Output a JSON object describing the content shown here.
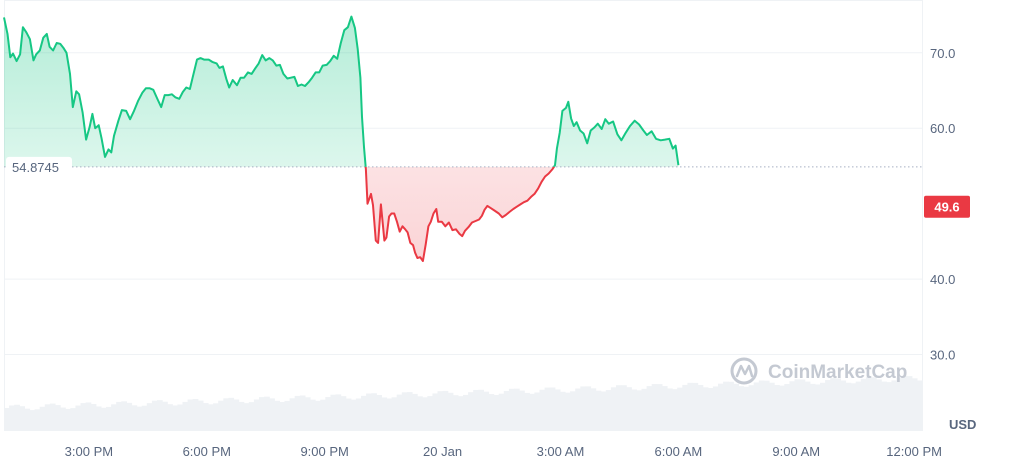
{
  "chart_data": {
    "type": "area",
    "y_unit": "USD",
    "ylim": [
      20,
      77
    ],
    "y_ticks": [
      {
        "value": 70,
        "label": "70.0"
      },
      {
        "value": 60,
        "label": "60.0"
      },
      {
        "value": 40,
        "label": "40.0"
      },
      {
        "value": 30,
        "label": "30.0"
      }
    ],
    "x_ticks": [
      {
        "t": 1.0,
        "label": "3:00 PM"
      },
      {
        "t": 4.0,
        "label": "6:00 PM"
      },
      {
        "t": 7.0,
        "label": "9:00 PM"
      },
      {
        "t": 10.0,
        "label": "20 Jan"
      },
      {
        "t": 13.0,
        "label": "3:00 AM"
      },
      {
        "t": 16.0,
        "label": "6:00 AM"
      },
      {
        "t": 19.0,
        "label": "9:00 AM"
      },
      {
        "t": 22.0,
        "label": "12:00 PM"
      }
    ],
    "x_range_hours": [
      -1.16,
      22.2
    ],
    "reference_line": {
      "value": 54.8745,
      "label": "54.8745"
    },
    "current_price": {
      "value": 49.6,
      "label": "49.6"
    },
    "colors": {
      "up": "#16c784",
      "down": "#ea3943",
      "grid": "#eff2f5",
      "volume": "#eff2f5"
    },
    "grid": true,
    "watermark": "CoinMarketCap",
    "series": [
      {
        "points": [
          [
            -1.16,
            74.7
          ],
          [
            -1.07,
            72.5
          ],
          [
            -1.0,
            69.4
          ],
          [
            -0.93,
            69.9
          ],
          [
            -0.84,
            68.9
          ],
          [
            -0.75,
            69.8
          ],
          [
            -0.68,
            73.4
          ],
          [
            -0.59,
            72.7
          ],
          [
            -0.5,
            71.8
          ],
          [
            -0.41,
            69.0
          ],
          [
            -0.34,
            69.8
          ],
          [
            -0.25,
            70.3
          ],
          [
            -0.16,
            72.0
          ],
          [
            -0.07,
            72.5
          ],
          [
            0.0,
            70.8
          ],
          [
            0.09,
            70.3
          ],
          [
            0.18,
            71.3
          ],
          [
            0.27,
            71.2
          ],
          [
            0.36,
            70.6
          ],
          [
            0.43,
            70.0
          ],
          [
            0.52,
            67.2
          ],
          [
            0.59,
            62.8
          ],
          [
            0.68,
            64.9
          ],
          [
            0.75,
            64.5
          ],
          [
            0.84,
            62.1
          ],
          [
            0.93,
            58.5
          ],
          [
            1.02,
            60.2
          ],
          [
            1.09,
            61.9
          ],
          [
            1.16,
            60.0
          ],
          [
            1.25,
            60.4
          ],
          [
            1.32,
            58.7
          ],
          [
            1.41,
            56.2
          ],
          [
            1.5,
            57.2
          ],
          [
            1.57,
            56.8
          ],
          [
            1.64,
            59.0
          ],
          [
            1.75,
            61.0
          ],
          [
            1.84,
            62.4
          ],
          [
            1.95,
            62.3
          ],
          [
            2.05,
            61.2
          ],
          [
            2.14,
            62.2
          ],
          [
            2.25,
            63.6
          ],
          [
            2.36,
            64.7
          ],
          [
            2.45,
            65.3
          ],
          [
            2.55,
            65.3
          ],
          [
            2.64,
            65.1
          ],
          [
            2.75,
            63.8
          ],
          [
            2.84,
            62.8
          ],
          [
            2.93,
            64.4
          ],
          [
            3.02,
            64.4
          ],
          [
            3.11,
            64.5
          ],
          [
            3.2,
            64.1
          ],
          [
            3.3,
            63.9
          ],
          [
            3.39,
            64.8
          ],
          [
            3.48,
            65.4
          ],
          [
            3.57,
            65.2
          ],
          [
            3.64,
            66.7
          ],
          [
            3.75,
            69.1
          ],
          [
            3.84,
            69.3
          ],
          [
            3.93,
            69.1
          ],
          [
            4.05,
            69.1
          ],
          [
            4.14,
            68.8
          ],
          [
            4.25,
            68.6
          ],
          [
            4.32,
            68.0
          ],
          [
            4.41,
            68.2
          ],
          [
            4.5,
            66.5
          ],
          [
            4.57,
            65.4
          ],
          [
            4.66,
            66.4
          ],
          [
            4.77,
            65.7
          ],
          [
            4.86,
            66.7
          ],
          [
            4.95,
            66.7
          ],
          [
            5.05,
            67.4
          ],
          [
            5.14,
            67.2
          ],
          [
            5.23,
            67.9
          ],
          [
            5.32,
            68.6
          ],
          [
            5.41,
            69.7
          ],
          [
            5.5,
            69.0
          ],
          [
            5.59,
            69.3
          ],
          [
            5.68,
            69.0
          ],
          [
            5.77,
            68.3
          ],
          [
            5.86,
            68.4
          ],
          [
            5.95,
            67.2
          ],
          [
            6.05,
            66.6
          ],
          [
            6.14,
            66.7
          ],
          [
            6.23,
            66.8
          ],
          [
            6.32,
            65.6
          ],
          [
            6.41,
            65.8
          ],
          [
            6.5,
            65.6
          ],
          [
            6.59,
            66.1
          ],
          [
            6.68,
            66.7
          ],
          [
            6.77,
            67.4
          ],
          [
            6.86,
            67.4
          ],
          [
            6.95,
            68.3
          ],
          [
            7.05,
            68.4
          ],
          [
            7.14,
            68.9
          ],
          [
            7.23,
            69.6
          ],
          [
            7.32,
            69.2
          ],
          [
            7.41,
            71.3
          ],
          [
            7.5,
            73.0
          ],
          [
            7.59,
            73.4
          ],
          [
            7.68,
            74.8
          ],
          [
            7.77,
            73.3
          ],
          [
            7.84,
            70.5
          ],
          [
            7.91,
            66.7
          ],
          [
            7.95,
            61.5
          ],
          [
            8.0,
            57.5
          ],
          [
            8.05,
            54.5
          ],
          [
            8.09,
            50.0
          ],
          [
            8.18,
            51.3
          ],
          [
            8.23,
            49.8
          ],
          [
            8.3,
            45.1
          ],
          [
            8.36,
            44.8
          ],
          [
            8.43,
            49.9
          ],
          [
            8.52,
            45.1
          ],
          [
            8.57,
            45.5
          ],
          [
            8.64,
            48.3
          ],
          [
            8.7,
            48.7
          ],
          [
            8.77,
            48.7
          ],
          [
            8.84,
            47.6
          ],
          [
            8.91,
            46.3
          ],
          [
            8.98,
            47.0
          ],
          [
            9.05,
            46.6
          ],
          [
            9.11,
            46.2
          ],
          [
            9.18,
            44.8
          ],
          [
            9.25,
            44.5
          ],
          [
            9.3,
            43.5
          ],
          [
            9.36,
            42.8
          ],
          [
            9.43,
            42.9
          ],
          [
            9.5,
            42.4
          ],
          [
            9.57,
            44.6
          ],
          [
            9.64,
            47.0
          ],
          [
            9.7,
            47.6
          ],
          [
            9.77,
            48.7
          ],
          [
            9.84,
            49.3
          ],
          [
            9.89,
            47.6
          ],
          [
            9.98,
            47.6
          ],
          [
            10.07,
            47.0
          ],
          [
            10.16,
            47.5
          ],
          [
            10.25,
            46.5
          ],
          [
            10.34,
            46.6
          ],
          [
            10.43,
            46.0
          ],
          [
            10.5,
            45.7
          ],
          [
            10.57,
            46.4
          ],
          [
            10.66,
            46.9
          ],
          [
            10.75,
            47.5
          ],
          [
            10.84,
            47.7
          ],
          [
            10.93,
            47.9
          ],
          [
            11.0,
            48.4
          ],
          [
            11.07,
            49.2
          ],
          [
            11.14,
            49.7
          ],
          [
            11.23,
            49.4
          ],
          [
            11.32,
            49.1
          ],
          [
            11.43,
            48.7
          ],
          [
            11.52,
            48.2
          ],
          [
            11.61,
            48.5
          ],
          [
            11.7,
            48.9
          ],
          [
            11.8,
            49.3
          ],
          [
            11.89,
            49.6
          ],
          [
            11.98,
            49.9
          ],
          [
            12.07,
            50.2
          ],
          [
            12.16,
            50.4
          ],
          [
            12.25,
            50.9
          ],
          [
            12.34,
            51.3
          ],
          [
            12.43,
            52.0
          ],
          [
            12.52,
            52.9
          ],
          [
            12.61,
            53.6
          ],
          [
            12.7,
            54.0
          ],
          [
            12.8,
            54.6
          ],
          [
            12.86,
            55.1
          ],
          [
            12.91,
            57.3
          ],
          [
            12.98,
            59.4
          ],
          [
            13.05,
            62.3
          ],
          [
            13.14,
            62.7
          ],
          [
            13.2,
            63.5
          ],
          [
            13.27,
            61.3
          ],
          [
            13.34,
            60.3
          ],
          [
            13.41,
            60.8
          ],
          [
            13.5,
            59.7
          ],
          [
            13.59,
            59.3
          ],
          [
            13.68,
            58.0
          ],
          [
            13.77,
            59.7
          ],
          [
            13.86,
            60.1
          ],
          [
            13.95,
            60.6
          ],
          [
            14.05,
            59.9
          ],
          [
            14.14,
            61.2
          ],
          [
            14.23,
            60.6
          ],
          [
            14.34,
            60.9
          ],
          [
            14.45,
            59.2
          ],
          [
            14.55,
            58.4
          ],
          [
            14.66,
            59.4
          ],
          [
            14.77,
            60.3
          ],
          [
            14.89,
            61.0
          ],
          [
            15.0,
            60.5
          ],
          [
            15.11,
            59.7
          ],
          [
            15.2,
            59.1
          ],
          [
            15.32,
            59.6
          ],
          [
            15.43,
            58.6
          ],
          [
            15.55,
            58.4
          ],
          [
            15.66,
            58.5
          ],
          [
            15.77,
            58.6
          ],
          [
            15.86,
            57.3
          ],
          [
            15.93,
            57.7
          ],
          [
            16.0,
            55.1
          ]
        ]
      }
    ]
  }
}
